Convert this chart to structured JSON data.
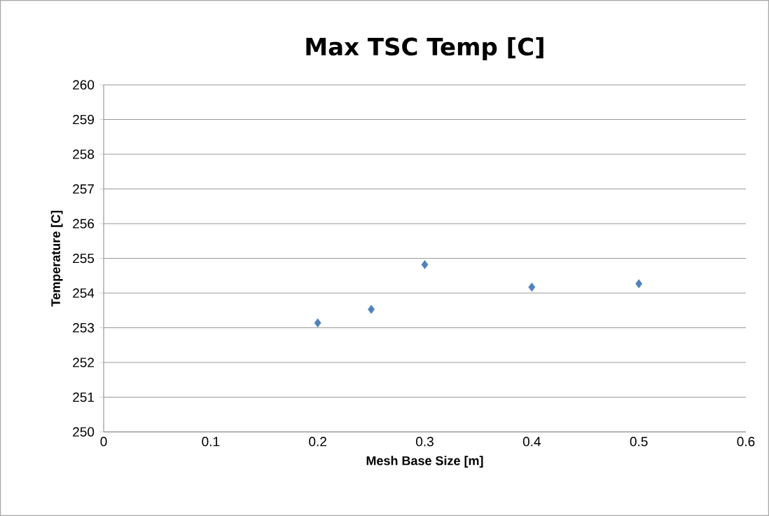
{
  "chart_data": {
    "type": "scatter",
    "title": "Max TSC Temp [C]",
    "xlabel": "Mesh Base Size [m]",
    "ylabel": "Temperature [C]",
    "x": [
      0.2,
      0.25,
      0.3,
      0.4,
      0.5
    ],
    "series": [
      {
        "color": "#4f81bd",
        "values": [
          253.14,
          253.53,
          254.82,
          254.17,
          254.27
        ]
      }
    ],
    "xlim": [
      0,
      0.6
    ],
    "ylim": [
      250,
      260
    ],
    "xticks": [
      0,
      0.1,
      0.2,
      0.3,
      0.4,
      0.5,
      0.6
    ],
    "yticks": [
      250,
      251,
      252,
      253,
      254,
      255,
      256,
      257,
      258,
      259,
      260
    ],
    "grid": "y",
    "marker": "diamond"
  }
}
